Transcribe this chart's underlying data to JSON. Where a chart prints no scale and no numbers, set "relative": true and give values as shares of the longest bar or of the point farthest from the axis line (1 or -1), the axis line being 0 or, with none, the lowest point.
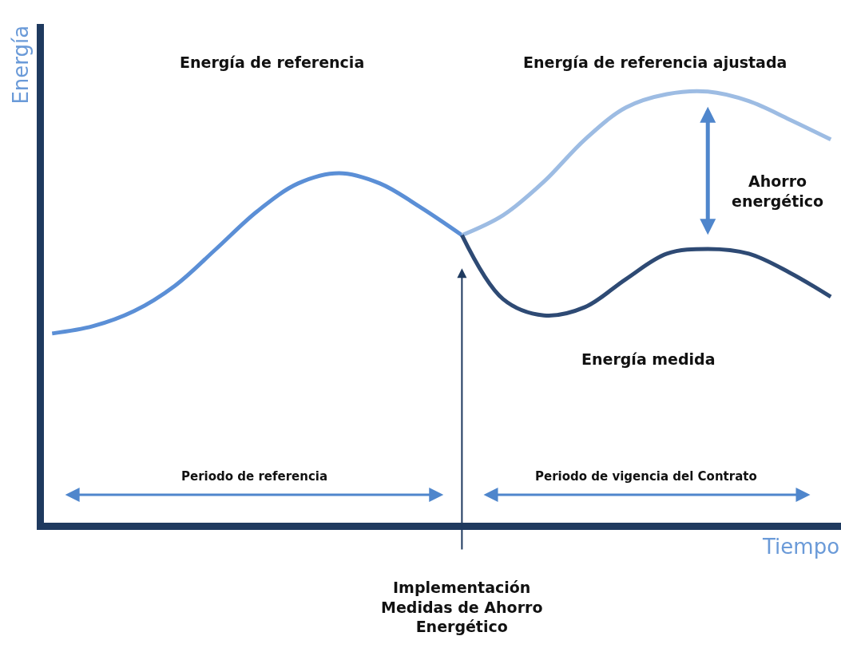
{
  "chart_data": {
    "type": "line",
    "relative": true,
    "xlabel": "Tiempo",
    "ylabel": "Energía",
    "categories": [
      null,
      null,
      null,
      null,
      null,
      null,
      null,
      null,
      null,
      null,
      null,
      null,
      null,
      null,
      null,
      null,
      null,
      null,
      null,
      null
    ],
    "series": [
      {
        "color": "#5b8fd6",
        "values": [
          0.439,
          0.456,
          0.491,
          0.55,
          0.635,
          0.722,
          0.787,
          0.811,
          0.787,
          0.731,
          0.667,
          null,
          null,
          null,
          null,
          null,
          null,
          null,
          null,
          null
        ]
      },
      {
        "color": "#9dbce3",
        "values": [
          null,
          null,
          null,
          null,
          null,
          null,
          null,
          null,
          null,
          null,
          0.667,
          0.713,
          0.791,
          0.889,
          0.963,
          0.994,
          1.0,
          0.978,
          0.935,
          0.889
        ]
      },
      {
        "color": "#2e4a74",
        "values": [
          null,
          null,
          null,
          null,
          null,
          null,
          null,
          null,
          null,
          null,
          0.667,
          0.519,
          0.481,
          0.5,
          0.565,
          0.624,
          0.635,
          0.624,
          0.58,
          0.524
        ]
      }
    ],
    "annotations": [
      "Energía de referencia",
      "Energía de referencia ajustada",
      "Ahorro\nenergético",
      "Energía medida",
      "Periodo de referencia",
      "Periodo de vigencia del Contrato",
      "Implementación\nMedidas de Ahorro\nEnergético"
    ],
    "marker": "none",
    "line_style": "solid"
  }
}
